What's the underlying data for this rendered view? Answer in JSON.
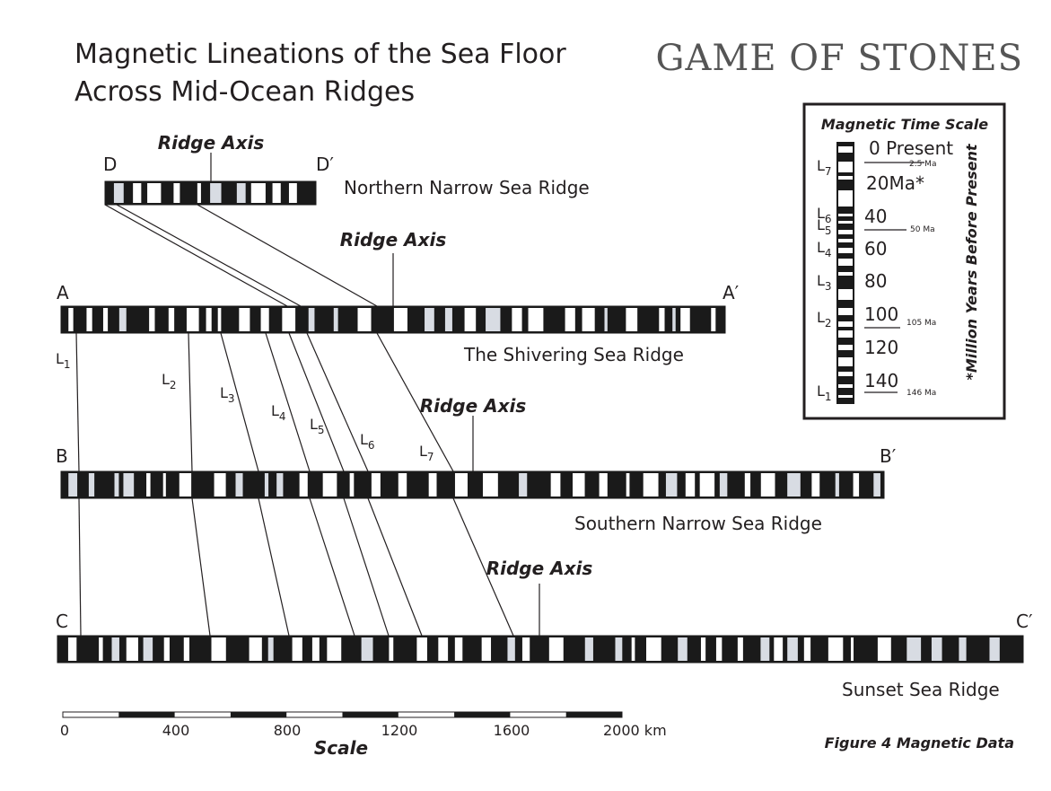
{
  "title": [
    "Magnetic Lineations of the Sea Floor",
    "Across Mid-Ocean Ridges"
  ],
  "logo": "GAME OF STONES",
  "ridges": [
    {
      "name": "Northern Narrow Sea Ridge",
      "start": "D",
      "end": "D′",
      "axis": "Ridge Axis"
    },
    {
      "name": "The Shivering Sea Ridge",
      "start": "A",
      "end": "A′",
      "axis": "Ridge Axis"
    },
    {
      "name": "Southern Narrow Sea Ridge",
      "start": "B",
      "end": "B′",
      "axis": "Ridge Axis"
    },
    {
      "name": "Sunset Sea Ridge",
      "start": "C",
      "end": "C′",
      "axis": "Ridge Axis"
    }
  ],
  "lineations": [
    {
      "letter": "L",
      "sub": "1"
    },
    {
      "letter": "L",
      "sub": "2"
    },
    {
      "letter": "L",
      "sub": "3"
    },
    {
      "letter": "L",
      "sub": "4"
    },
    {
      "letter": "L",
      "sub": "5"
    },
    {
      "letter": "L",
      "sub": "6"
    },
    {
      "letter": "L",
      "sub": "7"
    }
  ],
  "time_scale": {
    "title": "Magnetic Time Scale",
    "ages": [
      "0 Present",
      "20Ma*",
      "40",
      "60",
      "80",
      "100",
      "120",
      "140"
    ],
    "notes": [
      "2.5 Ma",
      "50 Ma",
      "105 Ma",
      "146 Ma"
    ],
    "side_note": "*Million Years Before Present",
    "layers": [
      {
        "letter": "L",
        "sub": "7"
      },
      {
        "letter": "L",
        "sub": "6"
      },
      {
        "letter": "L",
        "sub": "5"
      },
      {
        "letter": "L",
        "sub": "4"
      },
      {
        "letter": "L",
        "sub": "3"
      },
      {
        "letter": "L",
        "sub": "2"
      },
      {
        "letter": "L",
        "sub": "1"
      }
    ]
  },
  "scale": {
    "ticks": [
      "0",
      "400",
      "800",
      "1200",
      "1600",
      "2000 km"
    ],
    "label": "Scale"
  },
  "caption": "Figure 4 Magnetic Data"
}
